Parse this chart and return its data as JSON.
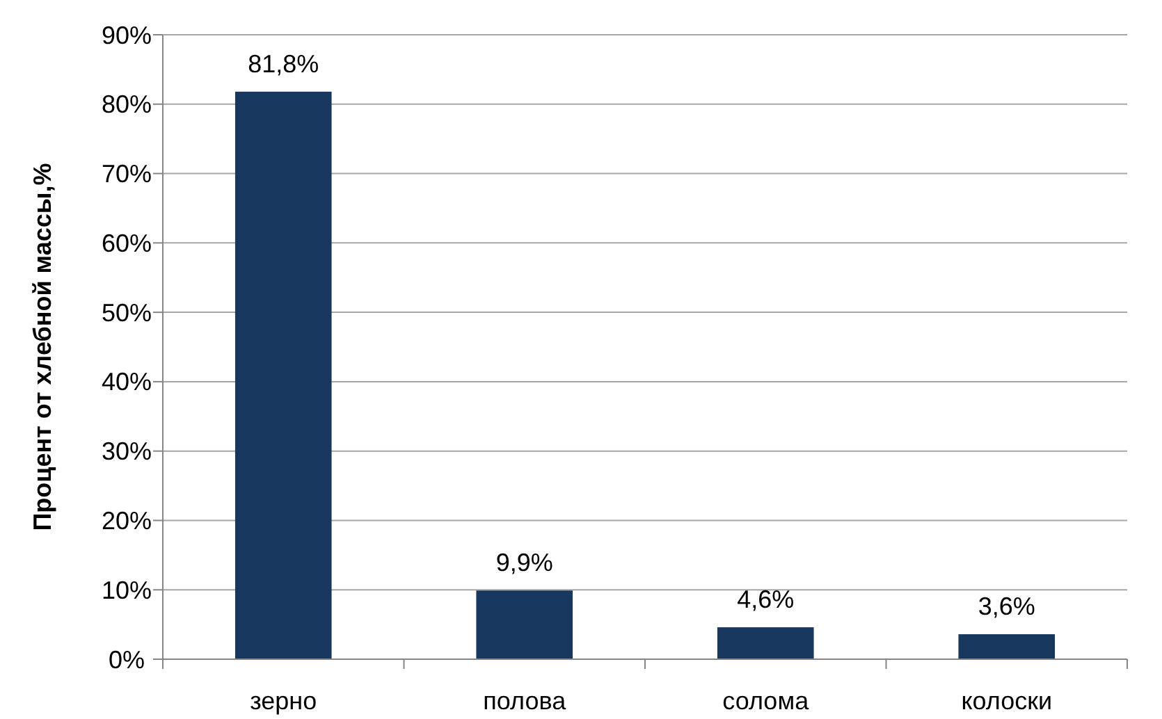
{
  "chart_data": {
    "type": "bar",
    "ylabel": "Процент от хлебной массы,%",
    "categories": [
      "зерно",
      "полова",
      "солома",
      "колоски"
    ],
    "values": [
      81.8,
      9.9,
      4.6,
      3.6
    ],
    "value_labels": [
      "81,8%",
      "9,9%",
      "4,6%",
      "3,6%"
    ],
    "color": "#17375e",
    "ylim": [
      0,
      90
    ],
    "yticks": [
      {
        "value": 0,
        "label": "0%"
      },
      {
        "value": 10,
        "label": "10%"
      },
      {
        "value": 20,
        "label": "20%"
      },
      {
        "value": 30,
        "label": "30%"
      },
      {
        "value": 40,
        "label": "40%"
      },
      {
        "value": 50,
        "label": "50%"
      },
      {
        "value": 60,
        "label": "60%"
      },
      {
        "value": 70,
        "label": "70%"
      },
      {
        "value": 80,
        "label": "80%"
      },
      {
        "value": 90,
        "label": "90%"
      }
    ],
    "grid": "y"
  }
}
